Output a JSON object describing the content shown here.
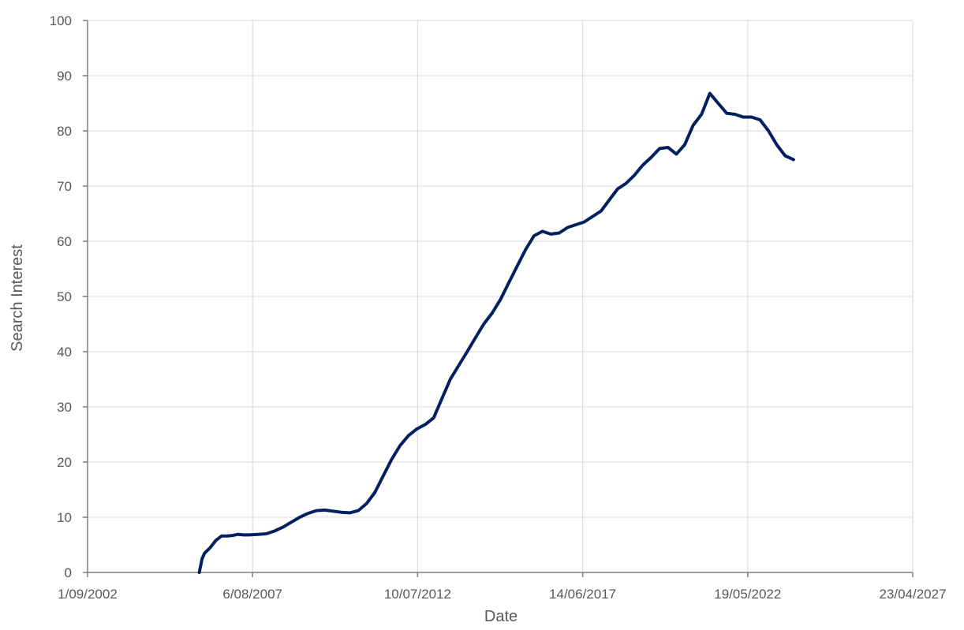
{
  "chart_data": {
    "type": "line",
    "title": "",
    "xlabel": "Date",
    "ylabel": "Search Interest",
    "x_type": "date",
    "xlim": [
      "2002-09-01",
      "2027-04-23"
    ],
    "ylim": [
      0,
      100
    ],
    "x_ticks": [
      "2002-09-01",
      "2007-08-06",
      "2012-07-10",
      "2017-06-14",
      "2022-05-19",
      "2027-04-23"
    ],
    "x_tick_labels": [
      "1/09/2002",
      "6/08/2007",
      "10/07/2012",
      "14/06/2017",
      "19/05/2022",
      "23/04/2027"
    ],
    "y_ticks": [
      0,
      10,
      20,
      30,
      40,
      50,
      60,
      70,
      80,
      90,
      100
    ],
    "y_tick_labels": [
      "0",
      "10",
      "20",
      "30",
      "40",
      "50",
      "60",
      "70",
      "80",
      "90",
      "100"
    ],
    "grid": true,
    "legend": "none",
    "series": [
      {
        "color": "#002060",
        "x": [
          "2006-01-01",
          "2006-02-01",
          "2006-03-01",
          "2006-05-01",
          "2006-07-01",
          "2006-09-01",
          "2006-11-01",
          "2007-01-01",
          "2007-03-01",
          "2007-05-01",
          "2007-07-01",
          "2007-10-01",
          "2008-01-01",
          "2008-04-01",
          "2008-07-01",
          "2008-10-01",
          "2009-01-01",
          "2009-04-01",
          "2009-07-01",
          "2009-10-01",
          "2010-01-01",
          "2010-04-01",
          "2010-07-01",
          "2010-10-01",
          "2011-01-01",
          "2011-04-01",
          "2011-07-01",
          "2011-10-01",
          "2012-01-01",
          "2012-04-01",
          "2012-07-01",
          "2012-10-01",
          "2013-01-01",
          "2013-04-01",
          "2013-07-01",
          "2013-10-01",
          "2014-01-01",
          "2014-04-01",
          "2014-07-01",
          "2014-10-01",
          "2015-01-01",
          "2015-04-01",
          "2015-07-01",
          "2015-10-01",
          "2016-01-01",
          "2016-04-01",
          "2016-07-01",
          "2016-10-01",
          "2017-01-01",
          "2017-04-01",
          "2017-07-01",
          "2017-10-01",
          "2018-01-01",
          "2018-04-01",
          "2018-07-01",
          "2018-10-01",
          "2019-01-01",
          "2019-04-01",
          "2019-07-01",
          "2019-10-01",
          "2020-01-01",
          "2020-04-01",
          "2020-07-01",
          "2020-10-01",
          "2021-01-01",
          "2021-04-01",
          "2021-07-01",
          "2021-10-01",
          "2022-01-01",
          "2022-04-01",
          "2022-07-01",
          "2022-10-01",
          "2023-01-01",
          "2023-04-01",
          "2023-07-01",
          "2023-10-01"
        ],
        "y": [
          0,
          2.5,
          3.5,
          4.5,
          5.8,
          6.6,
          6.6,
          6.7,
          6.9,
          6.8,
          6.8,
          6.9,
          7.0,
          7.5,
          8.2,
          9.1,
          10.0,
          10.7,
          11.2,
          11.3,
          11.1,
          10.9,
          10.8,
          11.2,
          12.5,
          14.5,
          17.5,
          20.5,
          23.0,
          24.8,
          26.0,
          26.8,
          28.0,
          31.5,
          35.0,
          37.5,
          40.0,
          42.5,
          45.0,
          47.0,
          49.5,
          52.5,
          55.5,
          58.5,
          61.0,
          61.8,
          61.3,
          61.5,
          62.5,
          63.0,
          63.5,
          64.5,
          65.5,
          67.5,
          69.5,
          70.5,
          72.0,
          73.8,
          75.2,
          76.8,
          77.0,
          75.8,
          77.5,
          81.0,
          83.0,
          86.8,
          85.0,
          83.2,
          83.0,
          82.5,
          82.5,
          82.0,
          80.0,
          77.5,
          75.5,
          74.8
        ]
      }
    ]
  }
}
